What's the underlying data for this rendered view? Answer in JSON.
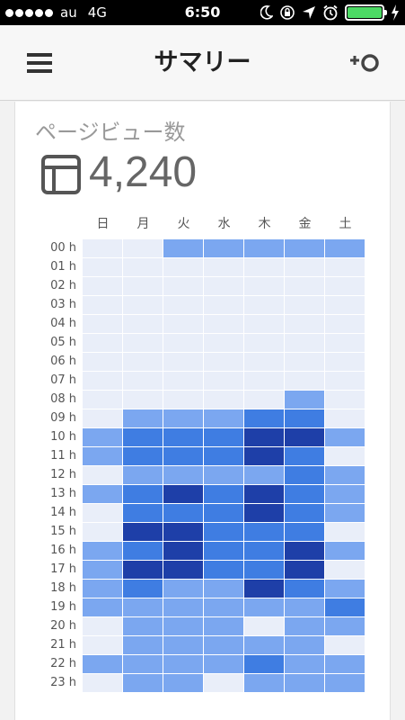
{
  "status_bar": {
    "carrier": "au",
    "network": "4G",
    "time": "6:50",
    "icons": [
      "moon-icon",
      "rotation-lock-icon",
      "location-arrow-icon",
      "alarm-icon",
      "battery-icon",
      "charging-icon"
    ],
    "battery_level": 1.0,
    "battery_color": "#4cd964"
  },
  "header": {
    "title": "サマリー",
    "left_icon": "menu-icon",
    "right_icon": "add-refresh-icon"
  },
  "card": {
    "title": "ページビュー数",
    "icon": "layout-icon",
    "value": "4,240"
  },
  "heatmap": {
    "days": [
      "日",
      "月",
      "火",
      "水",
      "木",
      "金",
      "土"
    ],
    "hours": [
      "00 h",
      "01 h",
      "02 h",
      "03 h",
      "04 h",
      "05 h",
      "06 h",
      "07 h",
      "08 h",
      "09 h",
      "10 h",
      "11 h",
      "12 h",
      "13 h",
      "14 h",
      "15 h",
      "16 h",
      "17 h",
      "18 h",
      "19 h",
      "20 h",
      "21 h",
      "22 h",
      "23 h"
    ],
    "palette": [
      "#e9eef9",
      "#7ba7f0",
      "#3f7de2",
      "#1e3fa8"
    ],
    "levels": [
      [
        0,
        0,
        1,
        1,
        1,
        1,
        1
      ],
      [
        0,
        0,
        0,
        0,
        0,
        0,
        0
      ],
      [
        0,
        0,
        0,
        0,
        0,
        0,
        0
      ],
      [
        0,
        0,
        0,
        0,
        0,
        0,
        0
      ],
      [
        0,
        0,
        0,
        0,
        0,
        0,
        0
      ],
      [
        0,
        0,
        0,
        0,
        0,
        0,
        0
      ],
      [
        0,
        0,
        0,
        0,
        0,
        0,
        0
      ],
      [
        0,
        0,
        0,
        0,
        0,
        0,
        0
      ],
      [
        0,
        0,
        0,
        0,
        0,
        1,
        0
      ],
      [
        0,
        1,
        1,
        1,
        2,
        2,
        0
      ],
      [
        1,
        2,
        2,
        2,
        3,
        3,
        1
      ],
      [
        1,
        2,
        2,
        2,
        3,
        2,
        0
      ],
      [
        0,
        1,
        1,
        1,
        1,
        2,
        1
      ],
      [
        1,
        2,
        3,
        2,
        3,
        2,
        1
      ],
      [
        0,
        2,
        2,
        2,
        3,
        2,
        1
      ],
      [
        0,
        3,
        3,
        2,
        2,
        2,
        0
      ],
      [
        1,
        2,
        3,
        2,
        2,
        3,
        1
      ],
      [
        1,
        3,
        3,
        2,
        2,
        3,
        0
      ],
      [
        1,
        2,
        1,
        1,
        3,
        2,
        1
      ],
      [
        1,
        1,
        1,
        1,
        1,
        1,
        2
      ],
      [
        0,
        1,
        1,
        1,
        0,
        1,
        1
      ],
      [
        0,
        1,
        1,
        1,
        1,
        1,
        0
      ],
      [
        1,
        1,
        1,
        1,
        2,
        1,
        1
      ],
      [
        0,
        1,
        1,
        0,
        1,
        1,
        1
      ]
    ]
  }
}
